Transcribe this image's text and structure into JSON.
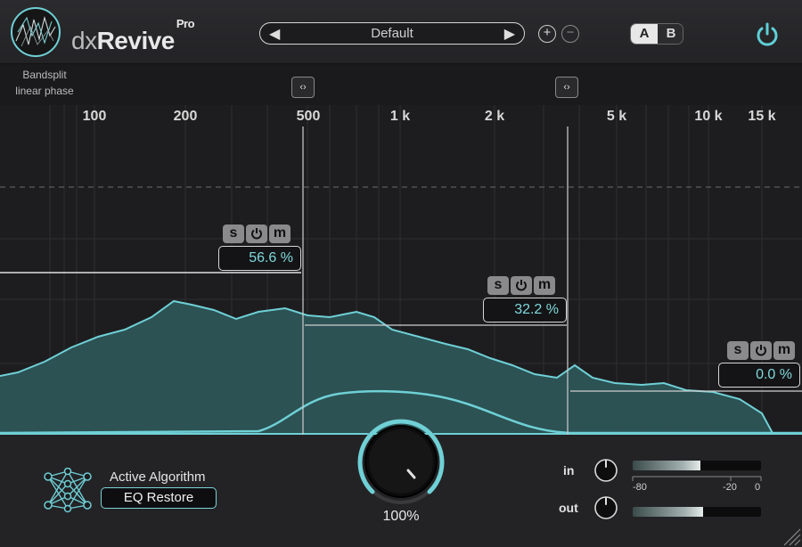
{
  "header": {
    "brand_prefix": "dx",
    "brand_name": "Revive",
    "brand_suffix": "Pro",
    "preset_name": "Default",
    "preset_prev": "◀",
    "preset_next": "▶",
    "add_symbol": "+",
    "remove_symbol": "−",
    "ab_a": "A",
    "ab_b": "B",
    "accent_color": "#57c9d2"
  },
  "bandsplit": {
    "label_line1": "Bandsplit",
    "label_line2": "linear phase",
    "split_button_glyph": "‹›"
  },
  "frequency_axis": {
    "labels": [
      "100",
      "200",
      "500",
      "1 k",
      "2 k",
      "5 k",
      "10 k",
      "15 k"
    ]
  },
  "bands": [
    {
      "solo": "s",
      "bypass_icon": "power-icon",
      "mute": "m",
      "value": "56.6 %"
    },
    {
      "solo": "s",
      "bypass_icon": "power-icon",
      "mute": "m",
      "value": "32.2 %"
    },
    {
      "solo": "s",
      "bypass_icon": "power-icon",
      "mute": "m",
      "value": "0.0 %"
    }
  ],
  "algorithm": {
    "title": "Active Algorithm",
    "selected": "EQ Restore"
  },
  "main_knob": {
    "value": "100%",
    "level": 1.0
  },
  "io": {
    "in_label": "in",
    "out_label": "out",
    "in_meter_level": 0.53,
    "out_meter_level": 0.55,
    "scale": [
      "-80",
      "-20",
      "0"
    ]
  }
}
